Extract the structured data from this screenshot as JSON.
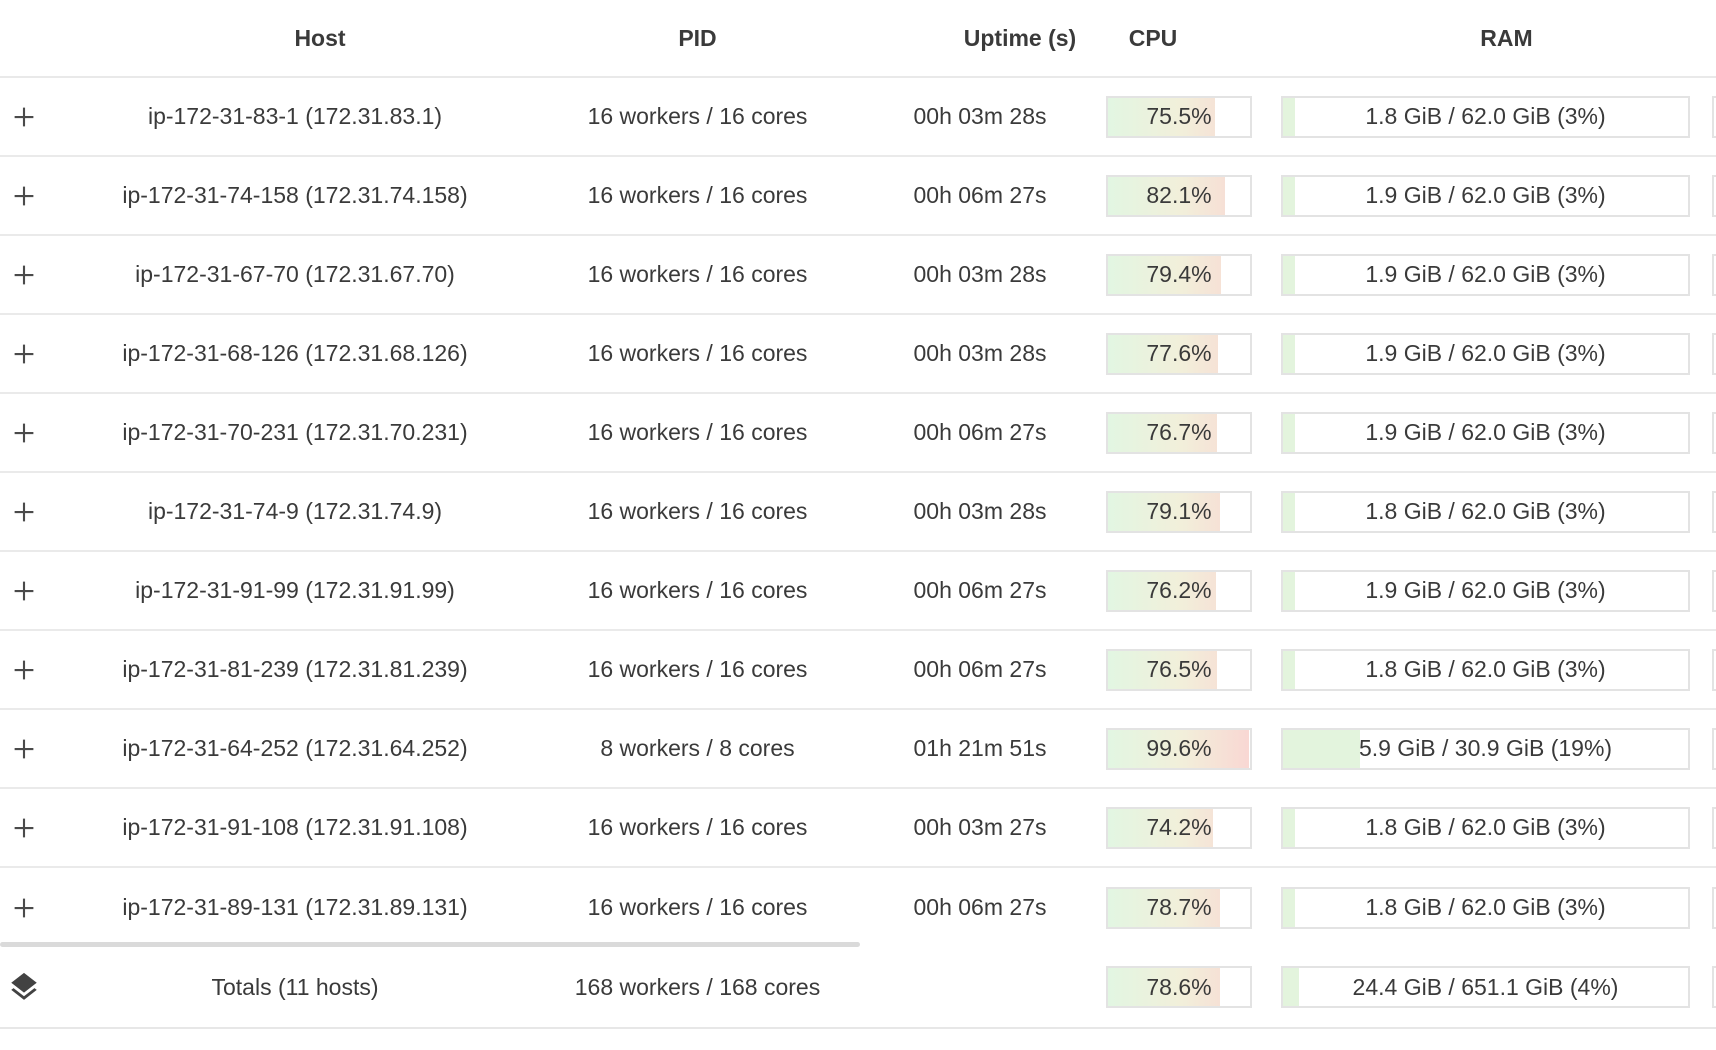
{
  "header": {
    "host": "Host",
    "pid": "PID",
    "uptime": "Uptime (s)",
    "cpu": "CPU",
    "ram": "RAM"
  },
  "rows": [
    {
      "host": "ip-172-31-83-1 (172.31.83.1)",
      "pid": "16 workers / 16 cores",
      "uptime": "00h 03m 28s",
      "cpu_label": "75.5%",
      "cpu_pct": 75.5,
      "ram_label": "1.8 GiB / 62.0 GiB (3%)",
      "ram_pct": 3
    },
    {
      "host": "ip-172-31-74-158 (172.31.74.158)",
      "pid": "16 workers / 16 cores",
      "uptime": "00h 06m 27s",
      "cpu_label": "82.1%",
      "cpu_pct": 82.1,
      "ram_label": "1.9 GiB / 62.0 GiB (3%)",
      "ram_pct": 3
    },
    {
      "host": "ip-172-31-67-70 (172.31.67.70)",
      "pid": "16 workers / 16 cores",
      "uptime": "00h 03m 28s",
      "cpu_label": "79.4%",
      "cpu_pct": 79.4,
      "ram_label": "1.9 GiB / 62.0 GiB (3%)",
      "ram_pct": 3
    },
    {
      "host": "ip-172-31-68-126 (172.31.68.126)",
      "pid": "16 workers / 16 cores",
      "uptime": "00h 03m 28s",
      "cpu_label": "77.6%",
      "cpu_pct": 77.6,
      "ram_label": "1.9 GiB / 62.0 GiB (3%)",
      "ram_pct": 3
    },
    {
      "host": "ip-172-31-70-231 (172.31.70.231)",
      "pid": "16 workers / 16 cores",
      "uptime": "00h 06m 27s",
      "cpu_label": "76.7%",
      "cpu_pct": 76.7,
      "ram_label": "1.9 GiB / 62.0 GiB (3%)",
      "ram_pct": 3
    },
    {
      "host": "ip-172-31-74-9 (172.31.74.9)",
      "pid": "16 workers / 16 cores",
      "uptime": "00h 03m 28s",
      "cpu_label": "79.1%",
      "cpu_pct": 79.1,
      "ram_label": "1.8 GiB / 62.0 GiB (3%)",
      "ram_pct": 3
    },
    {
      "host": "ip-172-31-91-99 (172.31.91.99)",
      "pid": "16 workers / 16 cores",
      "uptime": "00h 06m 27s",
      "cpu_label": "76.2%",
      "cpu_pct": 76.2,
      "ram_label": "1.9 GiB / 62.0 GiB (3%)",
      "ram_pct": 3
    },
    {
      "host": "ip-172-31-81-239 (172.31.81.239)",
      "pid": "16 workers / 16 cores",
      "uptime": "00h 06m 27s",
      "cpu_label": "76.5%",
      "cpu_pct": 76.5,
      "ram_label": "1.8 GiB / 62.0 GiB (3%)",
      "ram_pct": 3
    },
    {
      "host": "ip-172-31-64-252 (172.31.64.252)",
      "pid": "8 workers / 8 cores",
      "uptime": "01h 21m 51s",
      "cpu_label": "99.6%",
      "cpu_pct": 99.6,
      "ram_label": "5.9 GiB / 30.9 GiB (19%)",
      "ram_pct": 19
    },
    {
      "host": "ip-172-31-91-108 (172.31.91.108)",
      "pid": "16 workers / 16 cores",
      "uptime": "00h 03m 27s",
      "cpu_label": "74.2%",
      "cpu_pct": 74.2,
      "ram_label": "1.8 GiB / 62.0 GiB (3%)",
      "ram_pct": 3
    },
    {
      "host": "ip-172-31-89-131 (172.31.89.131)",
      "pid": "16 workers / 16 cores",
      "uptime": "00h 06m 27s",
      "cpu_label": "78.7%",
      "cpu_pct": 78.7,
      "ram_label": "1.8 GiB / 62.0 GiB (3%)",
      "ram_pct": 3
    }
  ],
  "totals": {
    "host": "Totals (11 hosts)",
    "pid": "168 workers / 168 cores",
    "uptime": "",
    "cpu_label": "78.6%",
    "cpu_pct": 78.6,
    "ram_label": "24.4 GiB / 651.1 GiB (4%)",
    "ram_pct": 4
  },
  "icons": {
    "expand": "plus-icon",
    "totals": "layers-icon"
  },
  "colors": {
    "text": "#3a3a3a",
    "row_divider": "#eaeaea",
    "bar_border": "#e3e3e3",
    "cpu_gradient_start": "#e2f6e2",
    "cpu_gradient_mid": "#f2efda",
    "cpu_gradient_end": "#f9d7d3",
    "ram_fill": "#e3f4dd",
    "scrollbar_thumb": "#dadada",
    "icon": "#4a4a4a"
  }
}
